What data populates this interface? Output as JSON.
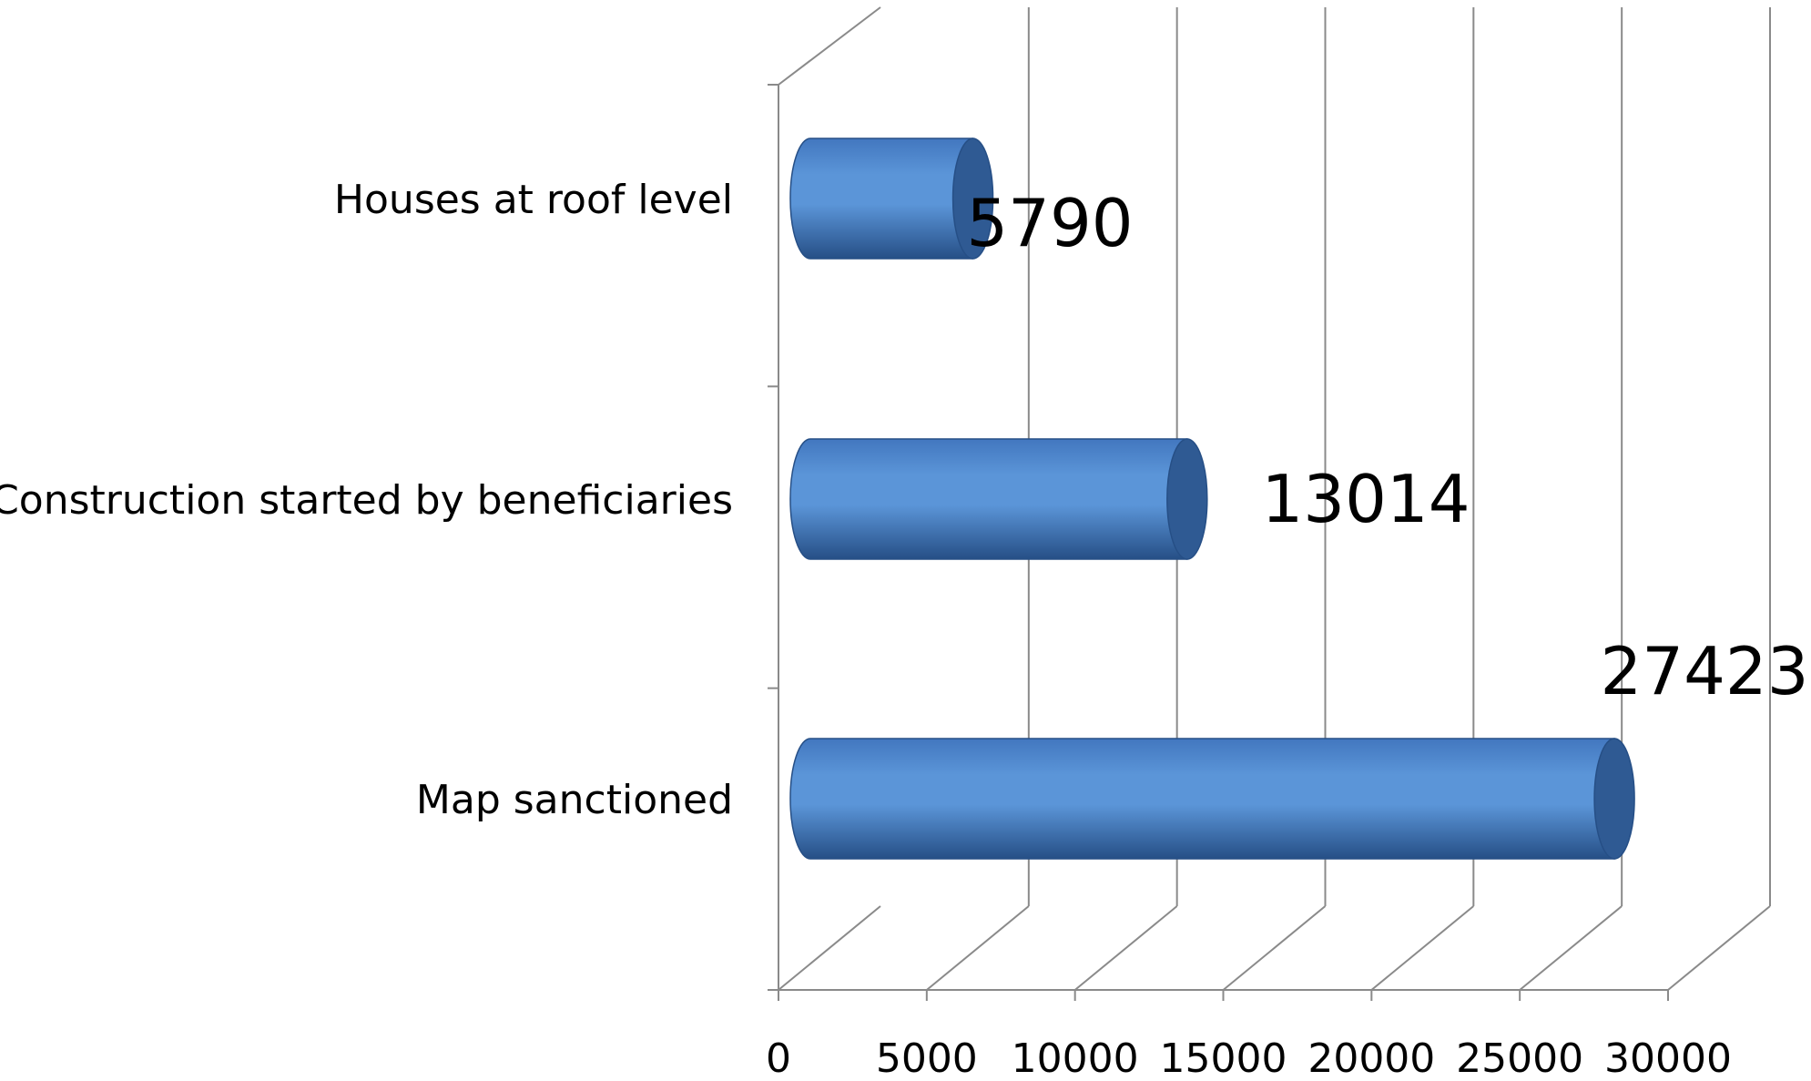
{
  "chart_data": {
    "type": "bar",
    "orientation": "horizontal",
    "style": "3d-cylinder",
    "title": "",
    "xlabel": "",
    "ylabel": "",
    "categories": [
      "Map sanctioned",
      "Construction started by beneficiaries",
      "Houses at roof level"
    ],
    "values": [
      27423,
      13014,
      5790
    ],
    "data_labels": [
      "27423",
      "13014",
      "5790"
    ],
    "xlim": [
      0,
      30000
    ],
    "x_ticks": [
      0,
      5000,
      10000,
      15000,
      20000,
      25000,
      30000
    ],
    "x_tick_labels": [
      "0",
      "5000",
      "10000",
      "15000",
      "20000",
      "25000",
      "30000"
    ],
    "grid": true,
    "legend": "none",
    "colors": {
      "bar_light": "#5b95d8",
      "bar_mid": "#4277bf",
      "bar_dark": "#264f86",
      "bar_cap": "#2f5a93",
      "grid": "#8a8a8a",
      "text": "#000000"
    }
  }
}
